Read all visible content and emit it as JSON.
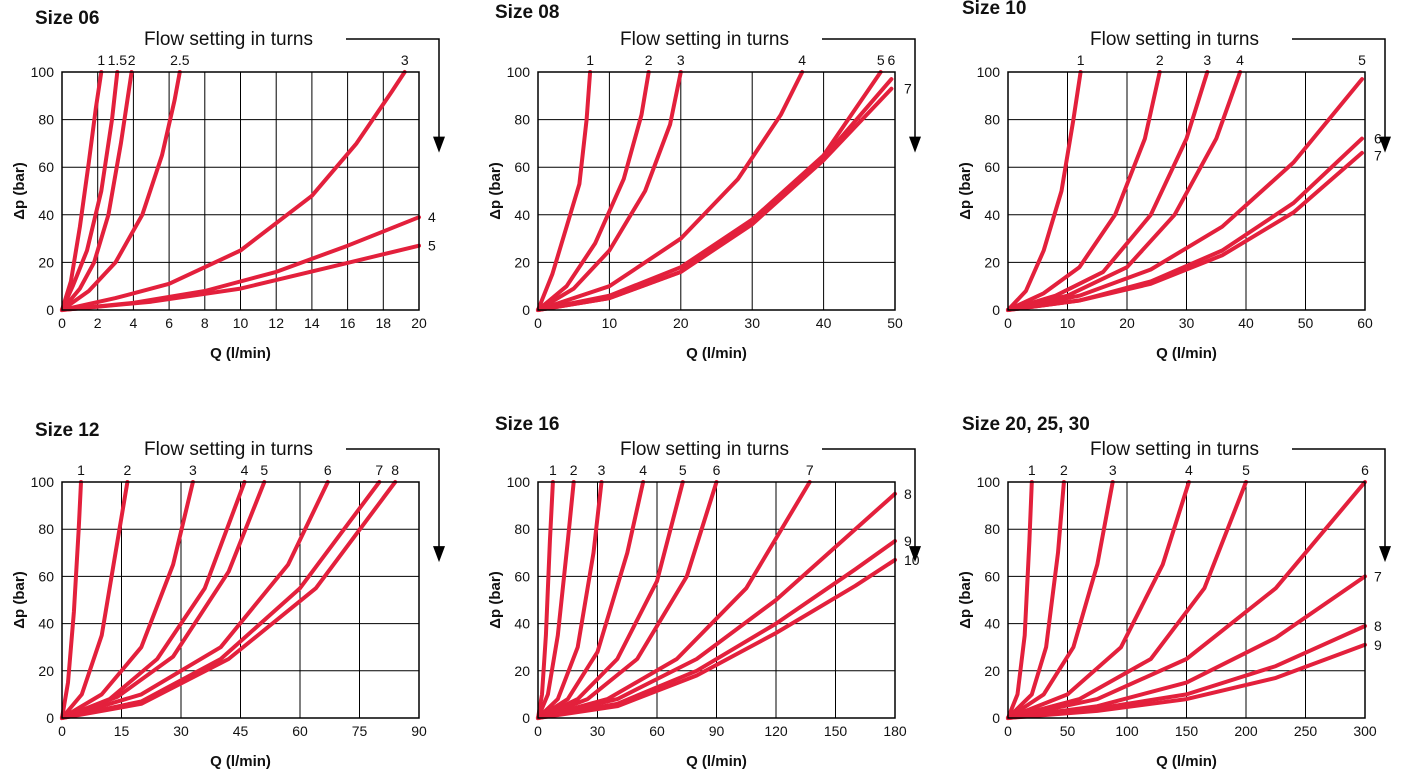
{
  "colors": {
    "curve": "#e3203c",
    "grid": "#000000",
    "text": "#111111"
  },
  "chart_data": [
    {
      "type": "line",
      "title": "Size 06",
      "annotation": "Flow setting in turns",
      "xlabel": "Q (l/min)",
      "ylabel": "Δp (bar)",
      "xlim": [
        0,
        20
      ],
      "ylim": [
        0,
        100
      ],
      "xticks": [
        0,
        2,
        4,
        6,
        8,
        10,
        12,
        14,
        16,
        18,
        20
      ],
      "yticks": [
        0,
        20,
        40,
        60,
        80,
        100
      ],
      "grid": true,
      "series": [
        {
          "name": "1",
          "label_pos": "top",
          "x": [
            0,
            0.5,
            1,
            1.5,
            1.9,
            2.2
          ],
          "y": [
            0,
            12,
            35,
            62,
            85,
            100
          ]
        },
        {
          "name": "1.5",
          "label_pos": "top",
          "x": [
            0,
            0.6,
            1.4,
            2.2,
            2.8,
            3.1
          ],
          "y": [
            0,
            10,
            25,
            50,
            80,
            100
          ]
        },
        {
          "name": "2",
          "label_pos": "top",
          "x": [
            0,
            1,
            1.8,
            2.6,
            3.3,
            3.9
          ],
          "y": [
            0,
            9,
            20,
            40,
            70,
            100
          ]
        },
        {
          "name": "2.5",
          "label_pos": "top",
          "x": [
            0,
            1.5,
            3,
            4.5,
            5.6,
            6.3,
            6.6
          ],
          "y": [
            0,
            8,
            20,
            40,
            65,
            88,
            100
          ]
        },
        {
          "name": "3",
          "label_pos": "top",
          "x": [
            0,
            3,
            6,
            10,
            14,
            16.5,
            18.5,
            19.2
          ],
          "y": [
            0,
            5,
            11,
            25,
            48,
            70,
            92,
            100
          ]
        },
        {
          "name": "4",
          "label_pos": "right",
          "x": [
            0,
            4,
            8,
            12,
            16,
            20
          ],
          "y": [
            0,
            3,
            8,
            16,
            27,
            39
          ]
        },
        {
          "name": "5",
          "label_pos": "right",
          "x": [
            0,
            5,
            10,
            15,
            20
          ],
          "y": [
            0,
            3.5,
            9,
            18,
            27
          ]
        }
      ]
    },
    {
      "type": "line",
      "title": "Size 08",
      "annotation": "Flow setting in turns",
      "xlabel": "Q (l/min)",
      "ylabel": "Δp (bar)",
      "xlim": [
        0,
        50
      ],
      "ylim": [
        0,
        100
      ],
      "xticks": [
        0,
        10,
        20,
        30,
        40,
        50
      ],
      "yticks": [
        0,
        20,
        40,
        60,
        80,
        100
      ],
      "grid": true,
      "series": [
        {
          "name": "1",
          "label_pos": "top",
          "x": [
            0,
            2,
            4,
            5.8,
            6.8,
            7.3
          ],
          "y": [
            0,
            15,
            35,
            53,
            80,
            100
          ]
        },
        {
          "name": "2",
          "label_pos": "top",
          "x": [
            0,
            4,
            8,
            12,
            14.5,
            15.5
          ],
          "y": [
            0,
            10,
            28,
            55,
            82,
            100
          ]
        },
        {
          "name": "3",
          "label_pos": "top",
          "x": [
            0,
            5,
            10,
            15,
            18.5,
            20
          ],
          "y": [
            0,
            9,
            25,
            50,
            78,
            100
          ]
        },
        {
          "name": "4",
          "label_pos": "top",
          "x": [
            0,
            10,
            20,
            28,
            34,
            37
          ],
          "y": [
            0,
            10,
            30,
            55,
            82,
            100
          ]
        },
        {
          "name": "5",
          "label_pos": "top",
          "x": [
            0,
            10,
            20,
            30,
            40,
            48
          ],
          "y": [
            0,
            6,
            18,
            38,
            65,
            100
          ]
        },
        {
          "name": "6",
          "label_pos": "top",
          "x": [
            0,
            10,
            20,
            30,
            40,
            49.5
          ],
          "y": [
            0,
            5,
            16,
            37,
            64,
            97
          ]
        },
        {
          "name": "7",
          "label_pos": "right",
          "x": [
            0,
            10,
            20,
            30,
            40,
            49.5
          ],
          "y": [
            0,
            5,
            16,
            36,
            63,
            93
          ]
        }
      ]
    },
    {
      "type": "line",
      "title": "Size 10",
      "annotation": "Flow setting in turns",
      "xlabel": "Q (l/min)",
      "ylabel": "Δp (bar)",
      "xlim": [
        0,
        60
      ],
      "ylim": [
        0,
        100
      ],
      "xticks": [
        0,
        10,
        20,
        30,
        40,
        50,
        60
      ],
      "yticks": [
        0,
        20,
        40,
        60,
        80,
        100
      ],
      "grid": true,
      "series": [
        {
          "name": "1",
          "label_pos": "top",
          "x": [
            0,
            3,
            6,
            9,
            11,
            12.2
          ],
          "y": [
            0,
            8,
            25,
            50,
            80,
            100
          ]
        },
        {
          "name": "2",
          "label_pos": "top",
          "x": [
            0,
            6,
            12,
            18,
            23,
            25.5
          ],
          "y": [
            0,
            7,
            18,
            40,
            72,
            100
          ]
        },
        {
          "name": "3",
          "label_pos": "top",
          "x": [
            0,
            8,
            16,
            24,
            30,
            33.5
          ],
          "y": [
            0,
            6,
            16,
            40,
            72,
            100
          ]
        },
        {
          "name": "4",
          "label_pos": "top",
          "x": [
            0,
            10,
            20,
            28,
            35,
            39
          ],
          "y": [
            0,
            6,
            18,
            40,
            72,
            100
          ]
        },
        {
          "name": "5",
          "label_pos": "top",
          "x": [
            0,
            12,
            24,
            36,
            48,
            59.5
          ],
          "y": [
            0,
            6,
            17,
            35,
            62,
            97
          ]
        },
        {
          "name": "6",
          "label_pos": "right",
          "x": [
            0,
            12,
            24,
            36,
            48,
            59.5
          ],
          "y": [
            0,
            4,
            12,
            25,
            45,
            72
          ]
        },
        {
          "name": "7",
          "label_pos": "right",
          "x": [
            0,
            12,
            24,
            36,
            48,
            59.5
          ],
          "y": [
            0,
            4,
            11,
            23,
            41,
            66
          ]
        }
      ]
    },
    {
      "type": "line",
      "title": "Size 12",
      "annotation": "Flow setting in turns",
      "xlabel": "Q (l/min)",
      "ylabel": "Δp (bar)",
      "xlim": [
        0,
        90
      ],
      "ylim": [
        0,
        100
      ],
      "xticks": [
        0,
        15,
        30,
        45,
        60,
        75,
        90
      ],
      "yticks": [
        0,
        20,
        40,
        60,
        80,
        100
      ],
      "grid": true,
      "series": [
        {
          "name": "1",
          "label_pos": "top",
          "x": [
            0,
            1.5,
            3,
            4.2,
            4.8
          ],
          "y": [
            0,
            15,
            45,
            80,
            100
          ]
        },
        {
          "name": "2",
          "label_pos": "top",
          "x": [
            0,
            5,
            10,
            14,
            16.5
          ],
          "y": [
            0,
            10,
            35,
            75,
            100
          ]
        },
        {
          "name": "3",
          "label_pos": "top",
          "x": [
            0,
            10,
            20,
            28,
            33
          ],
          "y": [
            0,
            10,
            30,
            65,
            100
          ]
        },
        {
          "name": "4",
          "label_pos": "top",
          "x": [
            0,
            12,
            24,
            36,
            46
          ],
          "y": [
            0,
            8,
            25,
            55,
            100
          ]
        },
        {
          "name": "5",
          "label_pos": "top",
          "x": [
            0,
            14,
            28,
            42,
            51
          ],
          "y": [
            0,
            9,
            26,
            62,
            100
          ]
        },
        {
          "name": "6",
          "label_pos": "top",
          "x": [
            0,
            20,
            40,
            57,
            67
          ],
          "y": [
            0,
            10,
            30,
            65,
            100
          ]
        },
        {
          "name": "7",
          "label_pos": "top",
          "x": [
            0,
            20,
            40,
            60,
            80
          ],
          "y": [
            0,
            7,
            25,
            55,
            100
          ]
        },
        {
          "name": "8",
          "label_pos": "top",
          "x": [
            0,
            20,
            42,
            64,
            84
          ],
          "y": [
            0,
            6,
            25,
            55,
            100
          ]
        }
      ]
    },
    {
      "type": "line",
      "title": "Size 16",
      "annotation": "Flow setting in turns",
      "xlabel": "Q (l/min)",
      "ylabel": "Δp (bar)",
      "xlim": [
        0,
        180
      ],
      "ylim": [
        0,
        100
      ],
      "xticks": [
        0,
        30,
        60,
        90,
        120,
        150,
        180
      ],
      "yticks": [
        0,
        20,
        40,
        60,
        80,
        100
      ],
      "grid": true,
      "series": [
        {
          "name": "1",
          "label_pos": "top",
          "x": [
            0,
            2,
            4,
            6,
            7.5
          ],
          "y": [
            0,
            10,
            35,
            75,
            100
          ]
        },
        {
          "name": "2",
          "label_pos": "top",
          "x": [
            0,
            5,
            10,
            15,
            18
          ],
          "y": [
            0,
            10,
            35,
            75,
            100
          ]
        },
        {
          "name": "3",
          "label_pos": "top",
          "x": [
            0,
            10,
            20,
            28,
            32
          ],
          "y": [
            0,
            8,
            30,
            70,
            100
          ]
        },
        {
          "name": "4",
          "label_pos": "top",
          "x": [
            0,
            15,
            30,
            45,
            53
          ],
          "y": [
            0,
            8,
            28,
            70,
            100
          ]
        },
        {
          "name": "5",
          "label_pos": "top",
          "x": [
            0,
            20,
            40,
            60,
            73
          ],
          "y": [
            0,
            8,
            25,
            58,
            100
          ]
        },
        {
          "name": "6",
          "label_pos": "top",
          "x": [
            0,
            25,
            50,
            75,
            90
          ],
          "y": [
            0,
            8,
            25,
            60,
            100
          ]
        },
        {
          "name": "7",
          "label_pos": "top",
          "x": [
            0,
            35,
            70,
            105,
            137
          ],
          "y": [
            0,
            8,
            25,
            55,
            100
          ]
        },
        {
          "name": "8",
          "label_pos": "right",
          "x": [
            0,
            40,
            80,
            120,
            160,
            180
          ],
          "y": [
            0,
            8,
            25,
            50,
            80,
            95
          ]
        },
        {
          "name": "9",
          "label_pos": "right",
          "x": [
            0,
            40,
            80,
            120,
            160,
            180
          ],
          "y": [
            0,
            6,
            20,
            40,
            63,
            75
          ]
        },
        {
          "name": "10",
          "label_pos": "right",
          "x": [
            0,
            40,
            80,
            120,
            160,
            180
          ],
          "y": [
            0,
            5,
            18,
            36,
            56,
            67
          ]
        }
      ]
    },
    {
      "type": "line",
      "title": "Size 20, 25, 30",
      "annotation": "Flow setting in turns",
      "xlabel": "Q (l/min)",
      "ylabel": "Δp (bar)",
      "xlim": [
        0,
        300
      ],
      "ylim": [
        0,
        100
      ],
      "xticks": [
        0,
        50,
        100,
        150,
        200,
        250,
        300
      ],
      "yticks": [
        0,
        20,
        40,
        60,
        80,
        100
      ],
      "grid": true,
      "series": [
        {
          "name": "1",
          "label_pos": "top",
          "x": [
            0,
            8,
            14,
            18,
            20
          ],
          "y": [
            0,
            10,
            35,
            75,
            100
          ]
        },
        {
          "name": "2",
          "label_pos": "top",
          "x": [
            0,
            20,
            32,
            42,
            47
          ],
          "y": [
            0,
            10,
            30,
            70,
            100
          ]
        },
        {
          "name": "3",
          "label_pos": "top",
          "x": [
            0,
            30,
            55,
            75,
            88
          ],
          "y": [
            0,
            10,
            30,
            65,
            100
          ]
        },
        {
          "name": "4",
          "label_pos": "top",
          "x": [
            0,
            50,
            95,
            130,
            152
          ],
          "y": [
            0,
            10,
            30,
            65,
            100
          ]
        },
        {
          "name": "5",
          "label_pos": "top",
          "x": [
            0,
            60,
            120,
            165,
            200
          ],
          "y": [
            0,
            8,
            25,
            55,
            100
          ]
        },
        {
          "name": "6",
          "label_pos": "top",
          "x": [
            0,
            75,
            150,
            225,
            300
          ],
          "y": [
            0,
            8,
            25,
            55,
            100
          ]
        },
        {
          "name": "7",
          "label_pos": "right",
          "x": [
            0,
            75,
            150,
            225,
            300
          ],
          "y": [
            0,
            5,
            15,
            34,
            60
          ]
        },
        {
          "name": "8",
          "label_pos": "right",
          "x": [
            0,
            75,
            150,
            225,
            300
          ],
          "y": [
            0,
            4,
            10,
            22,
            39
          ]
        },
        {
          "name": "9",
          "label_pos": "right",
          "x": [
            0,
            75,
            150,
            225,
            300
          ],
          "y": [
            0,
            3,
            8,
            17,
            31
          ]
        }
      ]
    }
  ]
}
